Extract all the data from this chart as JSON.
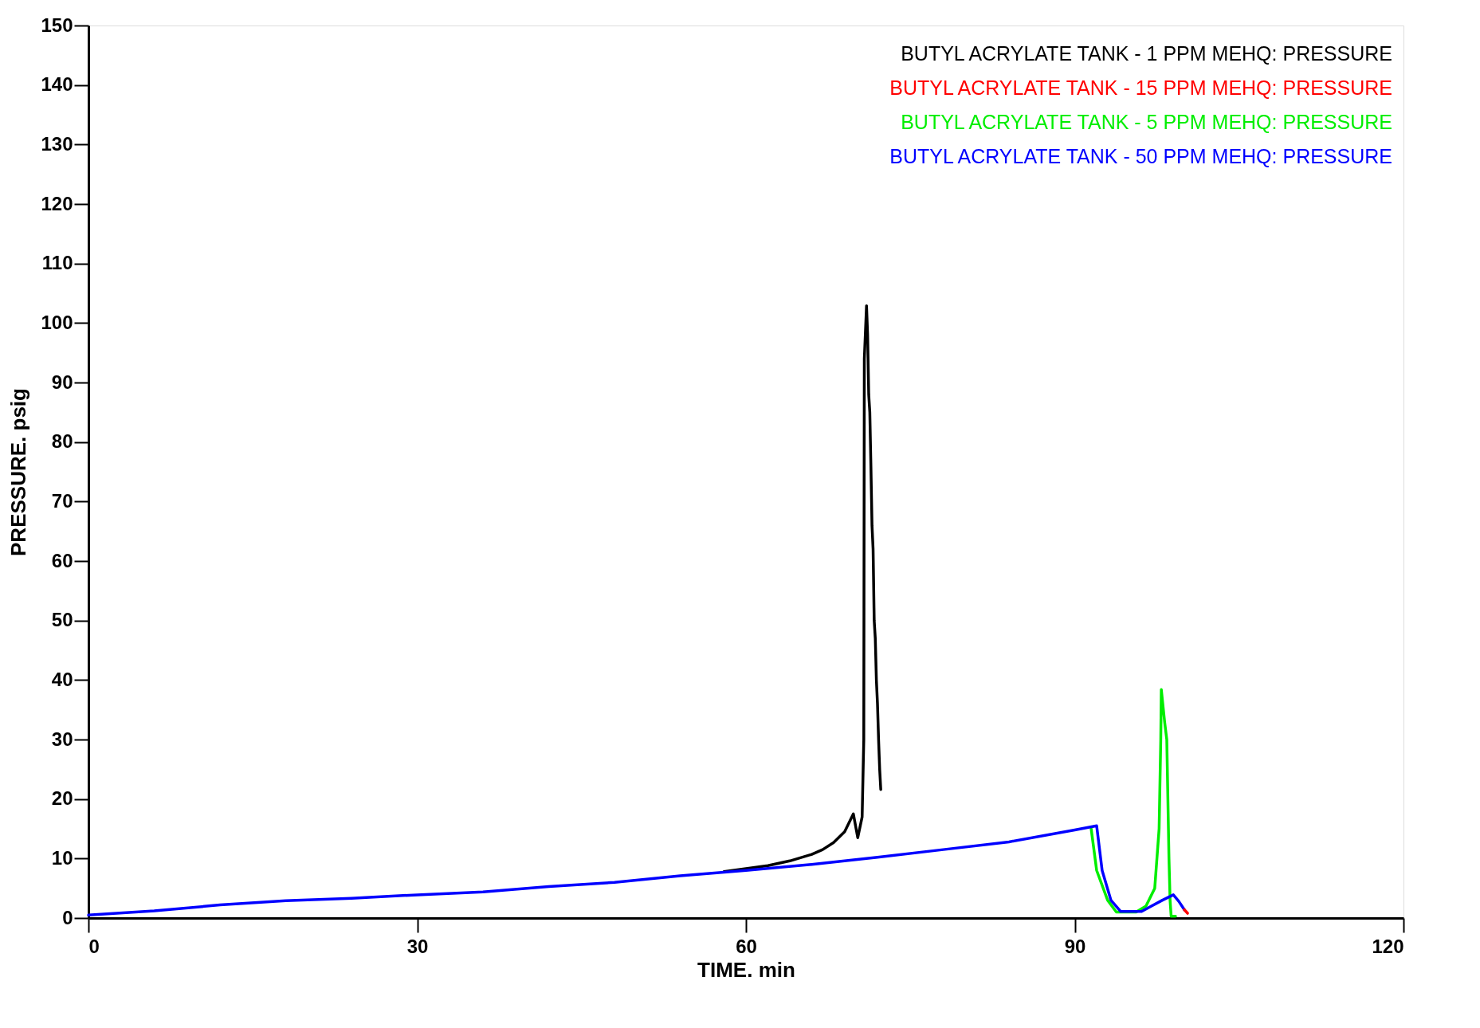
{
  "chart_data": {
    "type": "line",
    "xlabel": "TIME. min",
    "ylabel": "PRESSURE. psig",
    "xlim": [
      0,
      120
    ],
    "xticks": [
      0,
      30,
      60,
      90,
      120
    ],
    "ylim": [
      0,
      150
    ],
    "yticks": [
      0,
      10,
      20,
      30,
      40,
      50,
      60,
      70,
      80,
      90,
      100,
      110,
      120,
      130,
      140,
      150
    ],
    "grid": false,
    "legend": "top right",
    "marker": "none",
    "line_style": "solid",
    "series": [
      {
        "name": "BUTYL ACRYLATE TANK - 1 PPM MEHQ: PRESSURE",
        "color": "#000000",
        "x": [
          58,
          60,
          62,
          64,
          66,
          67,
          68,
          69,
          69.8,
          70.2,
          70.6,
          70.75,
          70.8,
          71.0,
          71.1,
          71.2,
          71.3,
          71.4,
          71.5,
          71.6,
          71.7,
          71.8,
          71.9,
          72.0,
          72.1,
          72.2,
          72.3
        ],
        "values": [
          7.8,
          8.3,
          8.8,
          9.6,
          10.7,
          11.5,
          12.7,
          14.5,
          17.5,
          13.5,
          17,
          30,
          94,
          102.9,
          98,
          88,
          85,
          76,
          66,
          62,
          50,
          47,
          40,
          36,
          30,
          25,
          21.6
        ]
      },
      {
        "name": "BUTYL ACRYLATE TANK - 15 PPM MEHQ: PRESSURE",
        "color": "#ff0000",
        "x": [
          100.0,
          100.3
        ],
        "values": [
          1.4,
          0.8
        ]
      },
      {
        "name": "BUTYL ACRYLATE TANK - 5 PPM MEHQ: PRESSURE",
        "color": "#00ee00",
        "x": [
          91.5,
          92,
          93,
          93.8,
          95.6,
          96.5,
          97.3,
          97.7,
          97.85,
          97.9,
          98.2,
          98.4,
          98.5,
          98.6,
          98.7,
          98.8,
          99.2
        ],
        "values": [
          15.0,
          8,
          3,
          1.0,
          1.0,
          2.0,
          5,
          15,
          30,
          38.4,
          33,
          30,
          20,
          10,
          3,
          0.3,
          0.3
        ]
      },
      {
        "name": "BUTYL ACRYLATE TANK - 50 PPM MEHQ: PRESSURE",
        "color": "#0000ff",
        "x": [
          0,
          6,
          12,
          18,
          24,
          30,
          36,
          42,
          48,
          54,
          60,
          66,
          72,
          78,
          84,
          90,
          92.0,
          92.5,
          93.3,
          94.2,
          96.1,
          97,
          98,
          99.0,
          99.5,
          100.0
        ],
        "values": [
          0.5,
          1.2,
          2.2,
          2.9,
          3.3,
          3.9,
          4.4,
          5.3,
          6.0,
          7.1,
          8.0,
          9.0,
          10.2,
          11.5,
          12.8,
          14.8,
          15.5,
          8,
          3,
          1.1,
          1.1,
          2.0,
          3.0,
          3.9,
          2.8,
          1.4
        ]
      }
    ]
  }
}
